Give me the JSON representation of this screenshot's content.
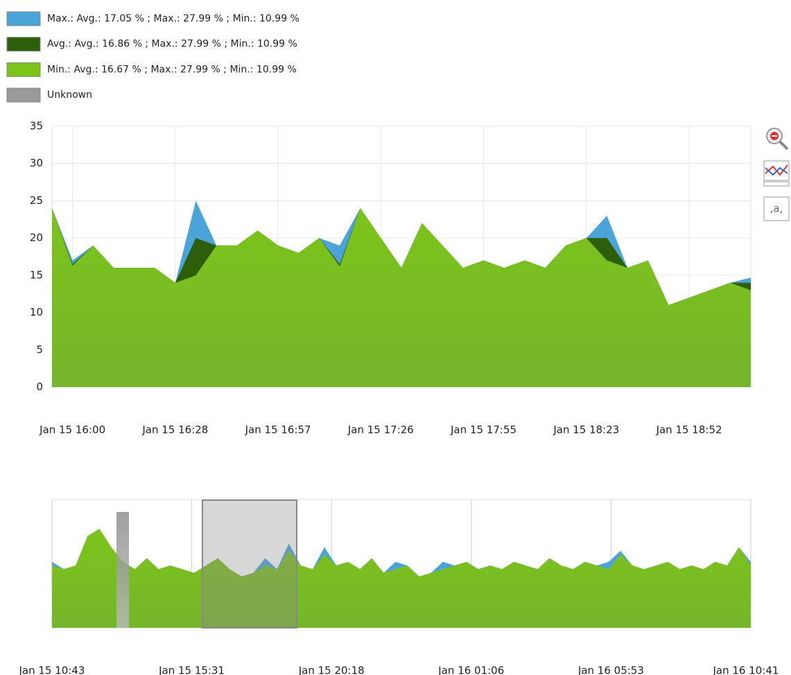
{
  "chart_data": [
    {
      "type": "area",
      "categories": [
        null,
        "Jan 15 16:00",
        null,
        null,
        null,
        null,
        "Jan 15 16:28",
        null,
        null,
        null,
        null,
        "Jan 15 16:57",
        null,
        null,
        null,
        null,
        "Jan 15 17:26",
        null,
        null,
        null,
        null,
        "Jan 15 17:55",
        null,
        null,
        null,
        null,
        "Jan 15 18:23",
        null,
        null,
        null,
        null,
        "Jan 15 18:52",
        null,
        null,
        null
      ],
      "series": [
        {
          "name": "Max.: Avg.: 17.05 % ; Max.: 27.99 % ; Min.: 10.99 %",
          "color": "#4aa3d9",
          "values": [
            24,
            17,
            19,
            16,
            16,
            16,
            14,
            25,
            19,
            19,
            21,
            19,
            18,
            20,
            19,
            24,
            20,
            16,
            22,
            19,
            16,
            17,
            16,
            17,
            16,
            19,
            20,
            23,
            16,
            17,
            11,
            12,
            13,
            14,
            14.7
          ]
        },
        {
          "name": "Avg.: Avg.: 16.86 % ; Max.: 27.99 % ; Min.: 10.99 %",
          "color": "#2d5f0a",
          "values": [
            24,
            16.5,
            19,
            16,
            16,
            16,
            14,
            20,
            19,
            19,
            21,
            19,
            18,
            20,
            16.5,
            24,
            20,
            16,
            22,
            19,
            16,
            17,
            16,
            17,
            16,
            19,
            20,
            20,
            16,
            17,
            11,
            12,
            13,
            14,
            14
          ]
        },
        {
          "name": "Min.: Avg.: 16.67 % ; Max.: 27.99 % ; Min.: 10.99 %",
          "color": "#7cc41a",
          "values": [
            24,
            16.3,
            19,
            16,
            16,
            16,
            14,
            15,
            19,
            19,
            21,
            19,
            18,
            20,
            16.2,
            24,
            20,
            16,
            22,
            19,
            16,
            17,
            16,
            17,
            16,
            19,
            20,
            17,
            16,
            17,
            11,
            12,
            13,
            14,
            13
          ]
        }
      ],
      "unknown": {
        "name": "Unknown",
        "color": "#999999"
      },
      "ylim": [
        0,
        35
      ],
      "yticks": [
        0,
        5,
        10,
        15,
        20,
        25,
        30,
        35
      ],
      "grid": true
    },
    {
      "type": "area",
      "xtick_labels": [
        "Jan 15 10:43",
        "Jan 15 15:31",
        "Jan 15 20:18",
        "Jan 16 01:06",
        "Jan 16 05:53",
        "Jan 16 10:41"
      ],
      "series": [
        {
          "color": "#4aa3d9",
          "values": [
            18,
            16,
            17,
            25,
            27,
            22,
            18,
            16,
            19,
            16,
            17,
            16,
            15,
            17,
            19,
            16,
            14,
            15,
            19,
            16,
            23,
            17,
            16,
            22,
            17,
            18,
            16,
            19,
            15,
            18,
            17,
            14,
            15,
            18,
            17,
            18,
            16,
            17,
            16,
            18,
            17,
            16,
            19,
            17,
            16,
            18,
            17,
            18,
            21,
            17,
            16,
            17,
            18,
            16,
            17,
            16,
            18,
            17,
            22,
            18
          ]
        },
        {
          "color": "#7cc41a",
          "values": [
            17,
            16,
            17,
            25,
            27,
            22,
            18,
            16,
            19,
            16,
            17,
            16,
            15,
            17,
            19,
            16,
            14,
            15,
            17,
            16,
            21,
            17,
            16,
            20,
            17,
            18,
            16,
            19,
            15,
            16,
            17,
            14,
            15,
            16,
            17,
            18,
            16,
            17,
            16,
            18,
            17,
            16,
            19,
            17,
            16,
            18,
            17,
            16,
            20,
            17,
            16,
            17,
            18,
            16,
            17,
            16,
            18,
            17,
            22,
            17
          ]
        }
      ],
      "ylim": [
        0,
        35
      ]
    }
  ]
}
